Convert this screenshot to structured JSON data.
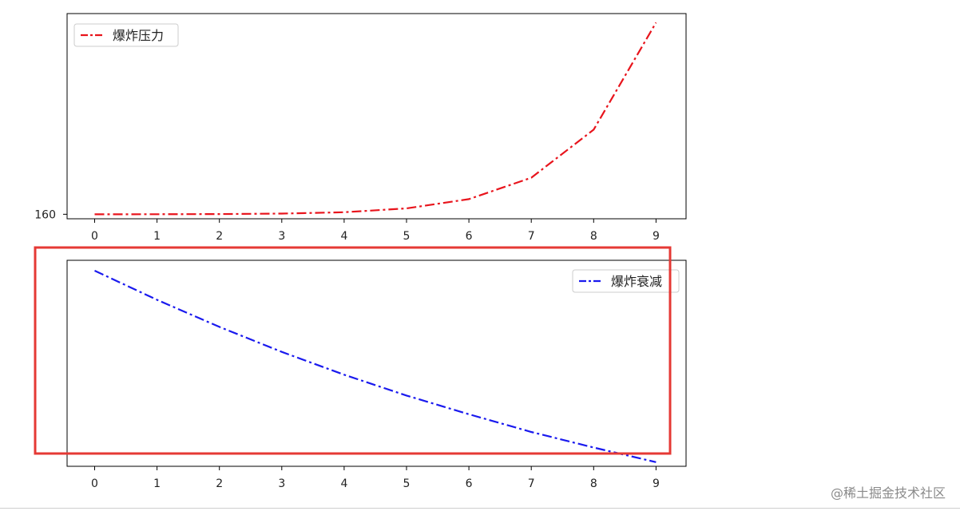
{
  "chart_data": [
    {
      "type": "line",
      "x": [
        0,
        1,
        2,
        3,
        4,
        5,
        6,
        7,
        8,
        9
      ],
      "series": [
        {
          "name": "爆炸压力",
          "color": "#e8141c",
          "linestyle": "dashdot",
          "values": [
            150,
            150.2,
            150.8,
            153,
            159,
            176,
            217,
            312,
            525,
            1000
          ]
        }
      ],
      "xticks": [
        "0",
        "1",
        "2",
        "3",
        "4",
        "5",
        "6",
        "7",
        "8",
        "9"
      ],
      "ytick_text": "160",
      "ylim": [
        130,
        1040
      ],
      "legend": "upper-left",
      "grid": false
    },
    {
      "type": "line",
      "x": [
        0,
        1,
        2,
        3,
        4,
        5,
        6,
        7,
        8,
        9
      ],
      "series": [
        {
          "name": "爆炸衰减",
          "color": "#1a1aee",
          "linestyle": "dashdot",
          "values": [
            1.0,
            0.86,
            0.73,
            0.61,
            0.5,
            0.4,
            0.31,
            0.225,
            0.15,
            0.08
          ]
        }
      ],
      "xticks": [
        "0",
        "1",
        "2",
        "3",
        "4",
        "5",
        "6",
        "7",
        "8",
        "9"
      ],
      "ylim": [
        0.06,
        1.05
      ],
      "legend": "upper-right",
      "grid": false
    }
  ],
  "highlight_color": "#e53935",
  "watermark": "@稀土掘金技术社区"
}
